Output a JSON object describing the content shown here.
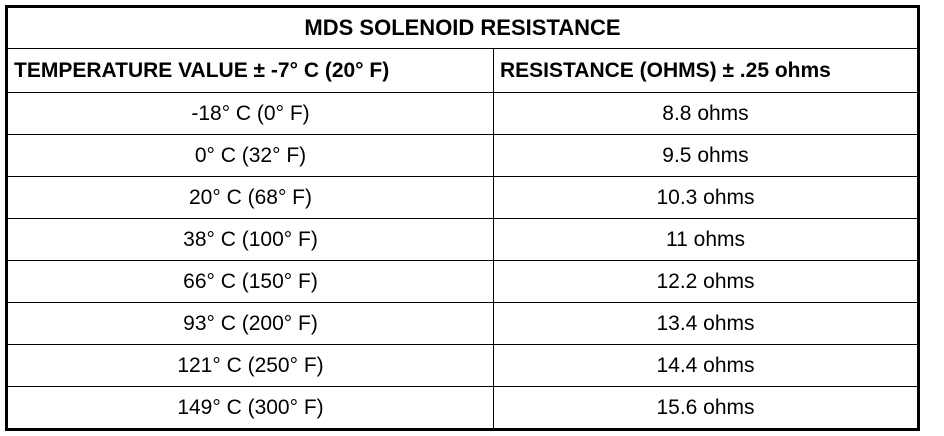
{
  "table": {
    "title": "MDS SOLENOID RESISTANCE",
    "header": [
      "TEMPERATURE VALUE ± -7° C (20° F)",
      "RESISTANCE (OHMS) ± .25 ohms"
    ],
    "rows": [
      [
        "-18° C (0° F)",
        "8.8 ohms"
      ],
      [
        "0° C (32° F)",
        "9.5 ohms"
      ],
      [
        "20° C (68° F)",
        "10.3 ohms"
      ],
      [
        "38° C (100° F)",
        "11 ohms"
      ],
      [
        "66° C (150° F)",
        "12.2 ohms"
      ],
      [
        "93° C (200° F)",
        "13.4 ohms"
      ],
      [
        "121° C (250° F)",
        "14.4 ohms"
      ],
      [
        "149° C (300° F)",
        "15.6 ohms"
      ]
    ]
  }
}
